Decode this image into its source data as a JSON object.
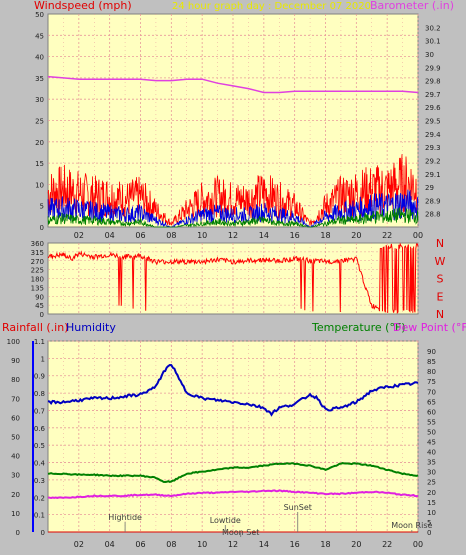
{
  "colors": {
    "page_bg": "#c0c0c0",
    "plot_bg": "#ffffc0",
    "grid": "#e89a9a",
    "axis_tick_text": "#202020",
    "wind_max": "#ff0000",
    "wind_avg": "#0000e0",
    "wind_min": "#008000",
    "barometer": "#e040e0",
    "direction": "#ff0000",
    "humidity": "#0000c0",
    "temperature": "#008000",
    "dewpoint": "#e020e0",
    "title_text": "#e8e800",
    "rain_label": "#e00000",
    "temp_label": "#008000",
    "dew_label": "#e020e0",
    "hum_label": "#0000c0",
    "event_text": "#404040"
  },
  "header": {
    "left_label": "Windspeed (mph)",
    "title": "24 hour graph day : December 07 2020",
    "right_label": "Barometer (.in)"
  },
  "rain_header": {
    "rain_label": "Rainfall (.in)",
    "humidity_label": "Humidity",
    "temp_label": "Temperature (°F)",
    "dew_label": "Dew Point (°F)"
  },
  "chart_data": [
    {
      "type": "line",
      "panel": "wind_barometer",
      "x_ticks": [
        "02",
        "04",
        "06",
        "08",
        "10",
        "12",
        "14",
        "16",
        "18",
        "20",
        "22",
        "00"
      ],
      "xlim": [
        0,
        24
      ],
      "y_left": {
        "label": "Windspeed (mph)",
        "ylim": [
          0,
          50
        ],
        "ticks": [
          0,
          5,
          10,
          15,
          20,
          25,
          30,
          35,
          40,
          45,
          50
        ]
      },
      "y_right": {
        "label": "Barometer (.in)",
        "ylim": [
          28.7,
          30.3
        ],
        "ticks": [
          "28.8",
          "28.9",
          "29",
          "29.1",
          "29.2",
          "29.3",
          "29.4",
          "29.5",
          "29.6",
          "29.7",
          "29.8",
          "29.9",
          "30",
          "30.1",
          "30.2"
        ]
      },
      "grid": true,
      "series": [
        {
          "role": "wind_max",
          "axis": "left",
          "x": [
            0,
            1,
            2,
            3,
            4,
            5,
            6,
            7,
            8,
            9,
            10,
            11,
            12,
            13,
            14,
            15,
            16,
            17,
            18,
            19,
            20,
            21,
            22,
            23,
            24
          ],
          "y": [
            10,
            11,
            10,
            9,
            9,
            8,
            9,
            5,
            1,
            5,
            8,
            9,
            8,
            8,
            10,
            8,
            6,
            1,
            6,
            9,
            10,
            11,
            11,
            13,
            12
          ]
        },
        {
          "role": "wind_avg",
          "axis": "left",
          "x": [
            0,
            1,
            2,
            3,
            4,
            5,
            6,
            7,
            8,
            9,
            10,
            11,
            12,
            13,
            14,
            15,
            16,
            17,
            18,
            19,
            20,
            21,
            22,
            23,
            24
          ],
          "y": [
            5,
            5.5,
            5,
            4.5,
            4,
            3.5,
            4,
            2,
            0,
            2,
            3.5,
            4,
            3.5,
            3.5,
            4.5,
            3.5,
            3,
            0,
            3,
            4.5,
            5,
            6,
            6,
            7,
            6
          ]
        },
        {
          "role": "wind_min",
          "axis": "left",
          "x": [
            0,
            1,
            2,
            3,
            4,
            5,
            6,
            7,
            8,
            9,
            10,
            11,
            12,
            13,
            14,
            15,
            16,
            17,
            18,
            19,
            20,
            21,
            22,
            23,
            24
          ],
          "y": [
            2,
            2.5,
            2,
            2,
            1.5,
            1,
            1.5,
            0,
            0,
            0.5,
            1,
            1.5,
            1,
            1.5,
            2,
            1,
            1,
            0,
            1,
            2,
            2,
            3,
            3,
            3.5,
            3
          ]
        },
        {
          "role": "barometer",
          "axis": "right",
          "x": [
            0,
            1,
            2,
            3,
            4,
            5,
            6,
            7,
            8,
            9,
            10,
            11,
            12,
            13,
            14,
            15,
            16,
            17,
            18,
            19,
            20,
            21,
            22,
            23,
            24
          ],
          "y": [
            29.83,
            29.82,
            29.81,
            29.81,
            29.81,
            29.81,
            29.81,
            29.8,
            29.8,
            29.81,
            29.81,
            29.78,
            29.76,
            29.74,
            29.71,
            29.71,
            29.72,
            29.72,
            29.72,
            29.72,
            29.72,
            29.72,
            29.72,
            29.72,
            29.71
          ]
        }
      ]
    },
    {
      "type": "line",
      "panel": "wind_direction",
      "x_ticks": [
        "02",
        "04",
        "06",
        "08",
        "10",
        "12",
        "14",
        "16",
        "18",
        "20",
        "22",
        "00"
      ],
      "xlim": [
        0,
        24
      ],
      "y_left": {
        "ylim": [
          0,
          360
        ],
        "ticks": [
          0,
          45,
          90,
          135,
          180,
          225,
          270,
          315,
          360
        ]
      },
      "y_right_labels": [
        "N",
        "W",
        "S",
        "E",
        "N"
      ],
      "series": [
        {
          "role": "direction",
          "x": [
            0,
            1,
            1.5,
            2,
            3,
            4,
            5,
            6,
            7,
            8,
            9,
            10,
            11,
            12,
            13,
            14,
            15,
            16,
            17,
            18,
            19,
            20,
            21,
            22,
            23,
            24
          ],
          "y": [
            290,
            300,
            280,
            305,
            290,
            300,
            290,
            295,
            265,
            265,
            265,
            265,
            275,
            265,
            270,
            275,
            270,
            280,
            270,
            265,
            270,
            280,
            40,
            30,
            20,
            25
          ]
        }
      ]
    },
    {
      "type": "line",
      "panel": "rain_humidity_temp",
      "x_ticks": [
        "02",
        "04",
        "06",
        "08",
        "10",
        "12",
        "14",
        "16",
        "18",
        "20",
        "22",
        "00"
      ],
      "xlim": [
        0,
        24
      ],
      "y_humidity": {
        "ylim": [
          0,
          100
        ],
        "ticks": [
          0,
          10,
          20,
          30,
          40,
          50,
          60,
          70,
          80,
          90,
          100
        ]
      },
      "y_rain": {
        "label": "Rainfall (.in)",
        "ylim": [
          0,
          1.1
        ],
        "ticks": [
          "0",
          "0.1",
          "0.2",
          "0.3",
          "0.4",
          "0.5",
          "0.6",
          "0.7",
          "0.8",
          "0.9",
          "1",
          "1.1"
        ]
      },
      "y_temp": {
        "label": "Temperature (°F)",
        "ylim": [
          0,
          95
        ],
        "ticks": [
          0,
          5,
          10,
          15,
          20,
          25,
          30,
          35,
          40,
          45,
          50,
          55,
          60,
          65,
          70,
          75,
          80,
          85,
          90
        ]
      },
      "grid": true,
      "series": [
        {
          "name": "Humidity",
          "axis": "humidity",
          "x": [
            0,
            1,
            2,
            3,
            4,
            5,
            6,
            7,
            7.5,
            8,
            8.5,
            9,
            10,
            11,
            12,
            13,
            14,
            14.5,
            15,
            16,
            17,
            17.5,
            18,
            19,
            20,
            21,
            22,
            23,
            24
          ],
          "y": [
            68,
            68,
            69,
            70,
            70,
            71,
            72,
            76,
            84,
            88,
            80,
            73,
            70,
            69,
            68,
            67,
            65,
            62,
            65,
            67,
            72,
            70,
            64,
            65,
            68,
            74,
            76,
            77,
            78
          ]
        },
        {
          "name": "Temperature",
          "axis": "temp",
          "x": [
            0,
            1,
            2,
            3,
            4,
            5,
            6,
            7,
            7.5,
            8,
            9,
            10,
            11,
            12,
            13,
            14,
            15,
            16,
            17,
            18,
            19,
            20,
            21,
            22,
            23,
            24
          ],
          "y": [
            29,
            29,
            28.5,
            28.5,
            28,
            28,
            28,
            27,
            25,
            25,
            29,
            30,
            31,
            32,
            32,
            33,
            34,
            34,
            33,
            31,
            34,
            34,
            33,
            31,
            29,
            28
          ]
        },
        {
          "name": "Dew Point",
          "axis": "temp",
          "x": [
            0,
            1,
            2,
            3,
            4,
            5,
            6,
            7,
            8,
            9,
            10,
            11,
            12,
            13,
            14,
            15,
            16,
            17,
            18,
            19,
            20,
            21,
            22,
            23,
            24
          ],
          "y": [
            17,
            17,
            17.5,
            18,
            18,
            18,
            18.5,
            18.5,
            18,
            19,
            19.5,
            19.5,
            20,
            20,
            20.5,
            20.5,
            20,
            19.5,
            19,
            19,
            19.5,
            20,
            19.5,
            18.5,
            18
          ]
        },
        {
          "name": "Rainfall",
          "axis": "rain",
          "x": [
            0,
            24
          ],
          "y": [
            0,
            0
          ]
        }
      ],
      "events": [
        {
          "label": "Hightide",
          "x": 5.0
        },
        {
          "label": "Lowtide",
          "x": 11.5
        },
        {
          "label": "Moon Set",
          "x": 12.5
        },
        {
          "label": "SunSet",
          "x": 16.2
        },
        {
          "label": "Moon Rise",
          "x": 23.6
        }
      ]
    }
  ]
}
